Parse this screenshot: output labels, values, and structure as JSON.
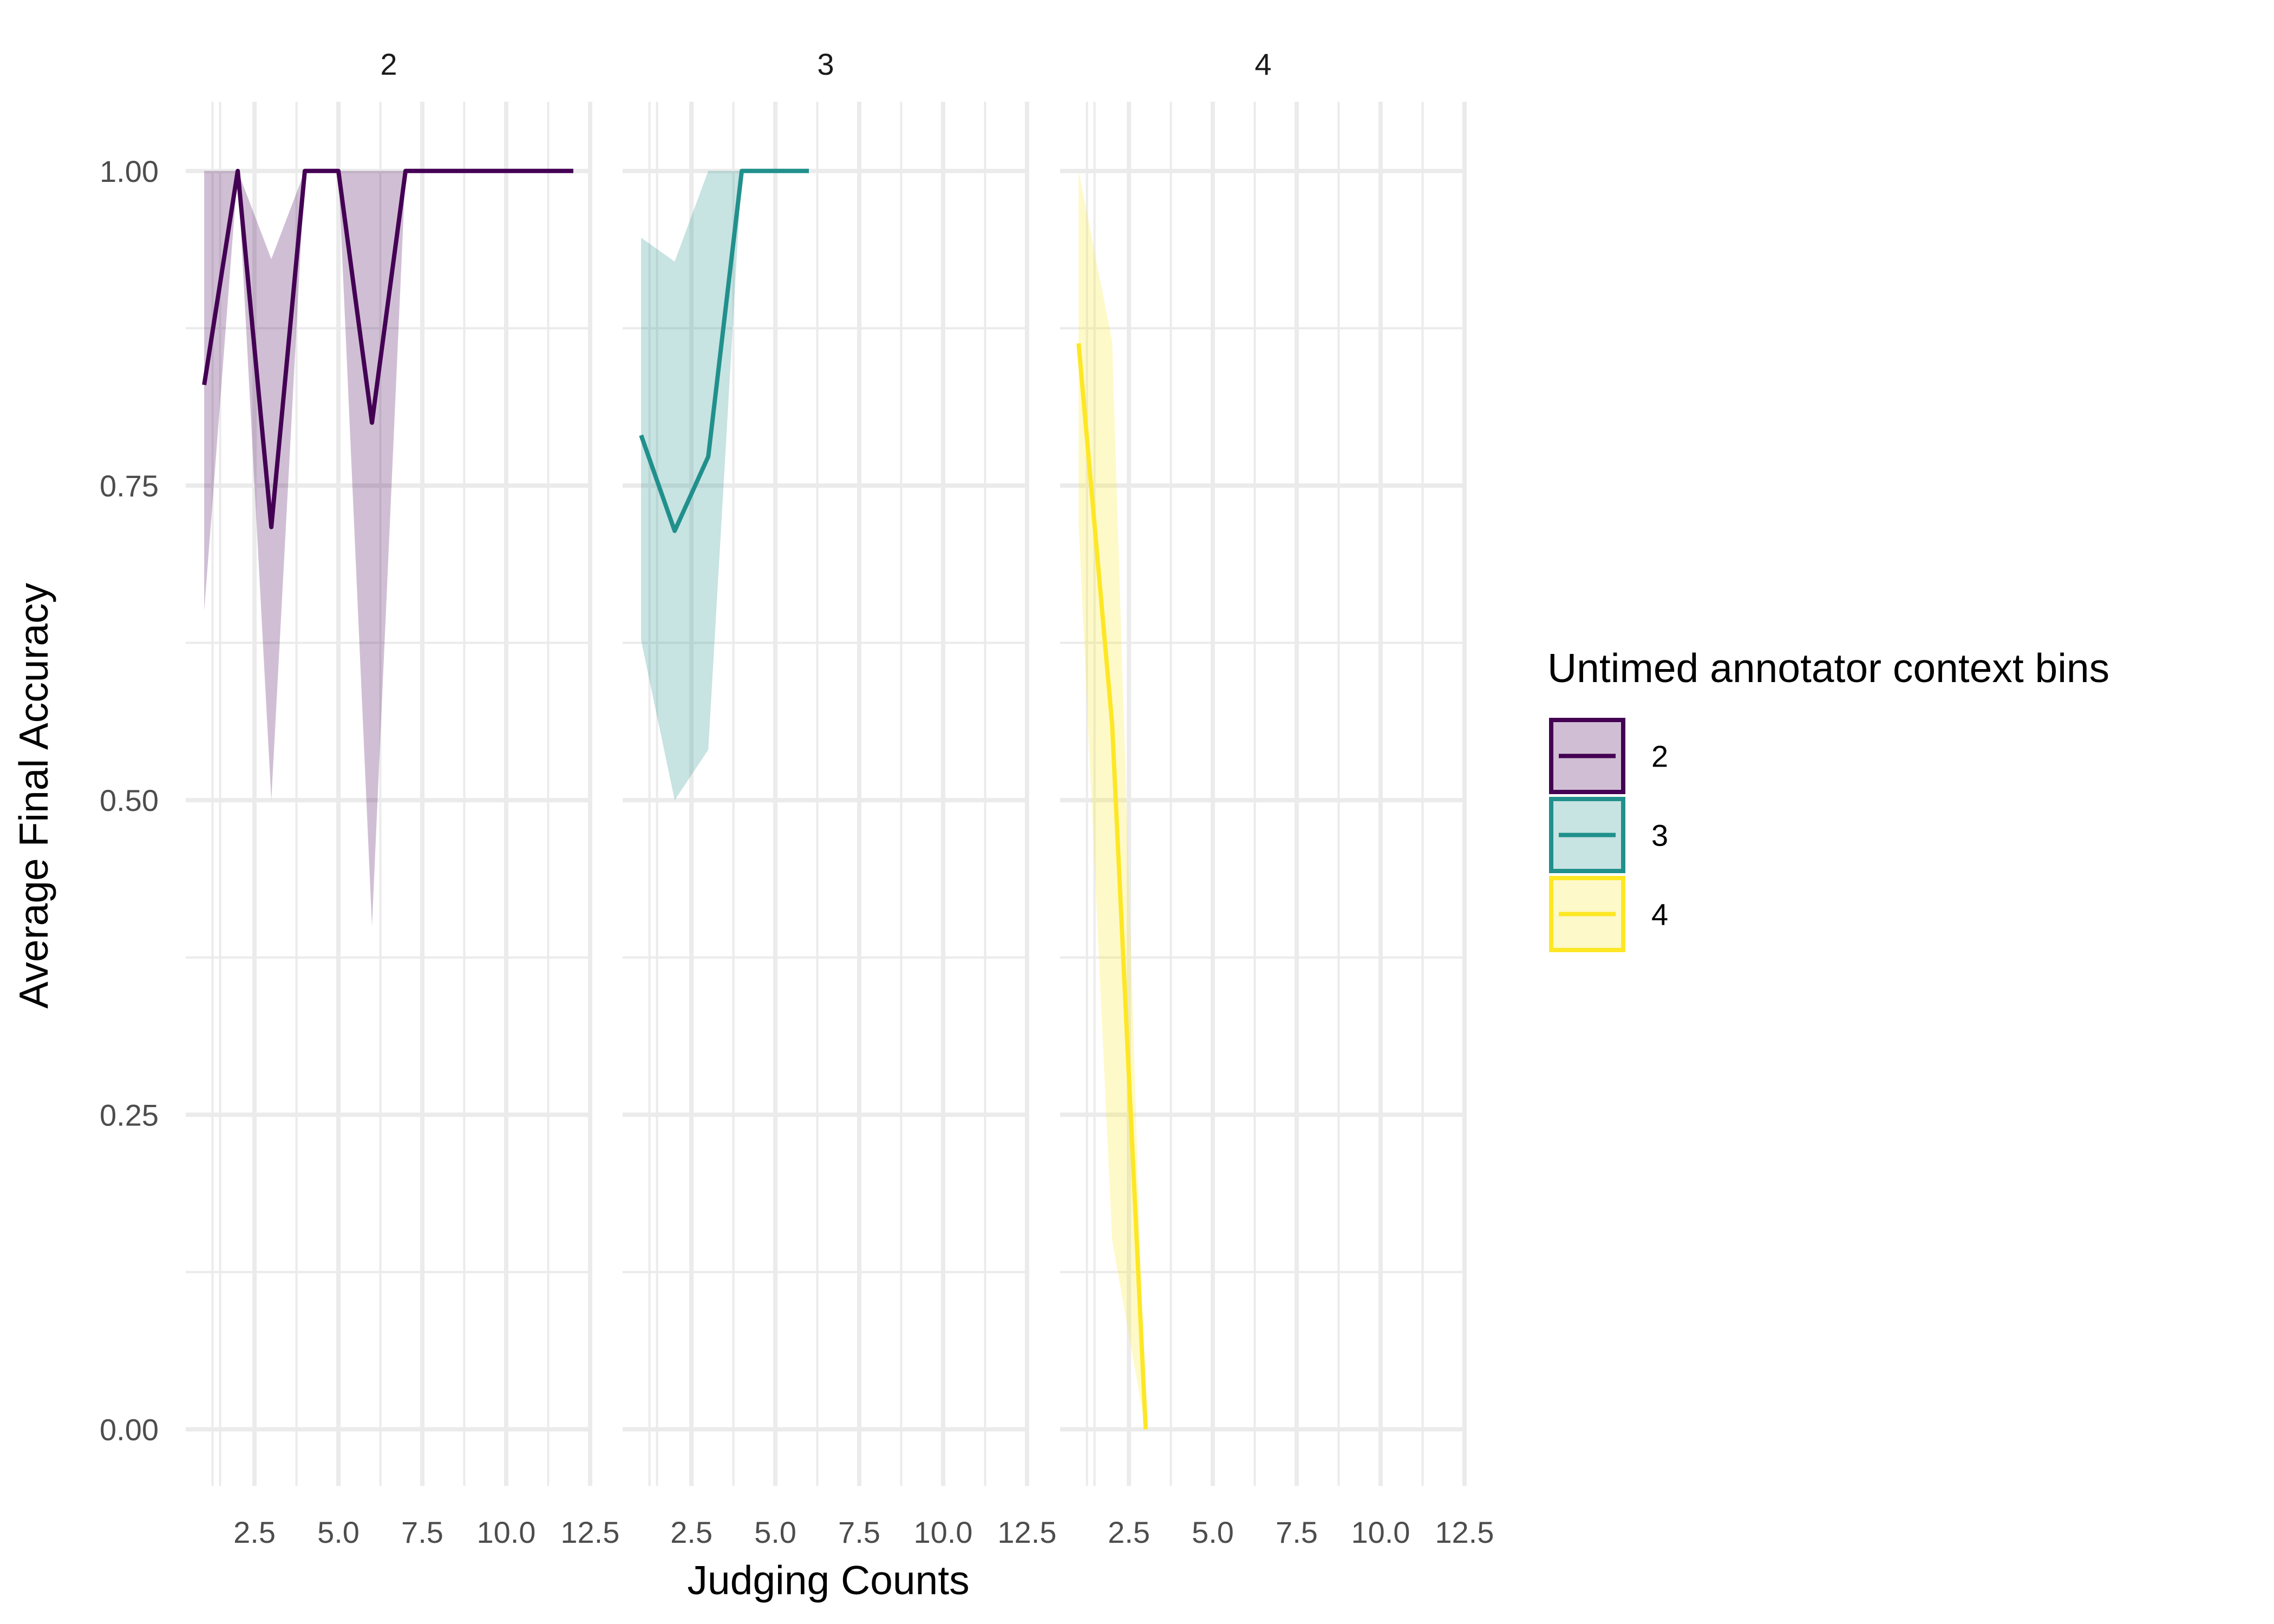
{
  "chart_data": {
    "type": "line",
    "xlabel": "Judging Counts",
    "ylabel": "Average Final Accuracy",
    "ylim": [
      -0.045,
      1.055
    ],
    "xlim": [
      0.45,
      12.55
    ],
    "x_ticks": [
      2.5,
      5.0,
      7.5,
      10.0,
      12.5
    ],
    "x_tick_labels": [
      "2.5",
      "5.0",
      "7.5",
      "10.0",
      "12.5"
    ],
    "y_ticks": [
      0.0,
      0.25,
      0.5,
      0.75,
      1.0
    ],
    "y_tick_labels": [
      "0.00",
      "0.25",
      "0.50",
      "0.75",
      "1.00"
    ],
    "grid": true,
    "legend": {
      "title": "Untimed annotator context bins",
      "placement": "right",
      "entries": [
        "2",
        "3",
        "4"
      ]
    },
    "facets": [
      {
        "label": "2",
        "color": "#440154",
        "x": [
          1,
          2,
          3,
          4,
          5,
          6,
          7,
          8,
          9,
          10,
          11,
          12
        ],
        "y": [
          0.83,
          1.0,
          0.717,
          1.0,
          1.0,
          0.8,
          1.0,
          1.0,
          1.0,
          1.0,
          1.0,
          1.0
        ],
        "ymin": [
          0.65,
          1.0,
          0.5,
          1.0,
          1.0,
          0.4,
          1.0,
          1.0,
          1.0,
          1.0,
          1.0,
          1.0
        ],
        "ymax": [
          1.0,
          1.0,
          0.93,
          1.0,
          1.0,
          1.0,
          1.0,
          1.0,
          1.0,
          1.0,
          1.0,
          1.0
        ]
      },
      {
        "label": "3",
        "color": "#21908C",
        "x": [
          1,
          2,
          3,
          4,
          5,
          6
        ],
        "y": [
          0.79,
          0.714,
          0.773,
          1.0,
          1.0,
          1.0
        ],
        "ymin": [
          0.627,
          0.5,
          0.54,
          1.0,
          1.0,
          1.0
        ],
        "ymax": [
          0.947,
          0.928,
          1.0,
          1.0,
          1.0,
          1.0
        ]
      },
      {
        "label": "4",
        "color": "#FDE725",
        "x": [
          1,
          2,
          3
        ],
        "y": [
          0.863,
          0.56,
          0.0
        ],
        "ymin": [
          0.72,
          0.15,
          0.0
        ],
        "ymax": [
          1.0,
          0.865,
          0.0
        ]
      }
    ]
  }
}
